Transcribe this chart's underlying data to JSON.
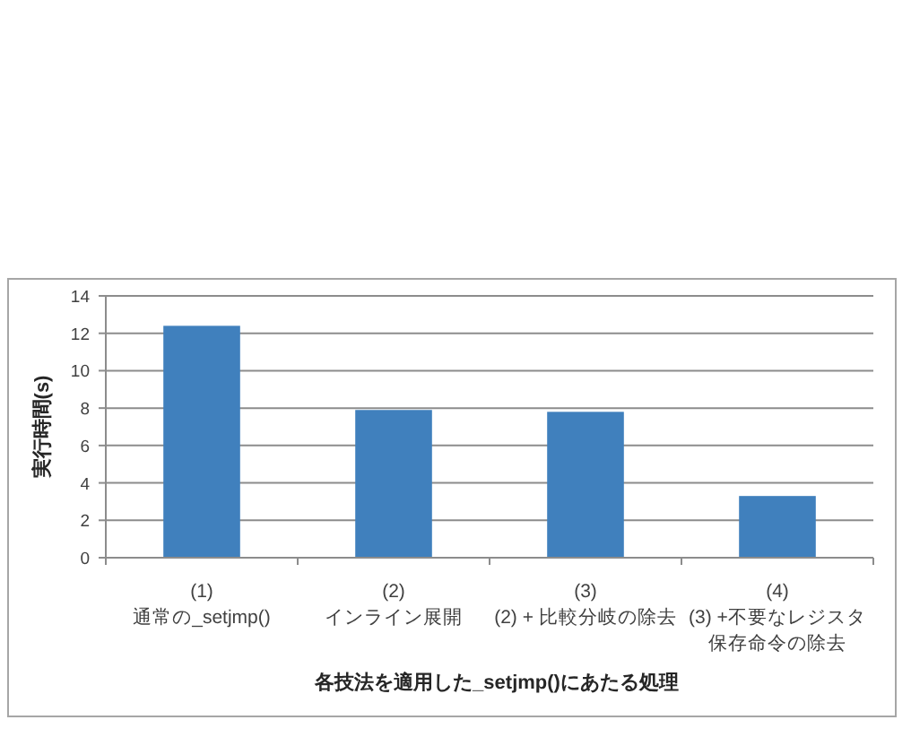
{
  "chart_data": {
    "type": "bar",
    "categories": [
      "(1)\n通常の_setjmp()",
      "(2)\nインライン展開",
      "(3)\n(2) + 比較分岐の除去",
      "(4)\n(3) +不要なレジスタ保存命令の除去"
    ],
    "values": [
      12.4,
      7.9,
      7.8,
      3.3
    ],
    "color": "#4080bd",
    "xlabel": "各技法を適用した_setjmp()にあたる処理",
    "ylabel": "実行時間(s)",
    "ylim": [
      0,
      14
    ],
    "yticks": [
      0,
      2,
      4,
      6,
      8,
      10,
      12,
      14
    ],
    "grid": "y"
  }
}
